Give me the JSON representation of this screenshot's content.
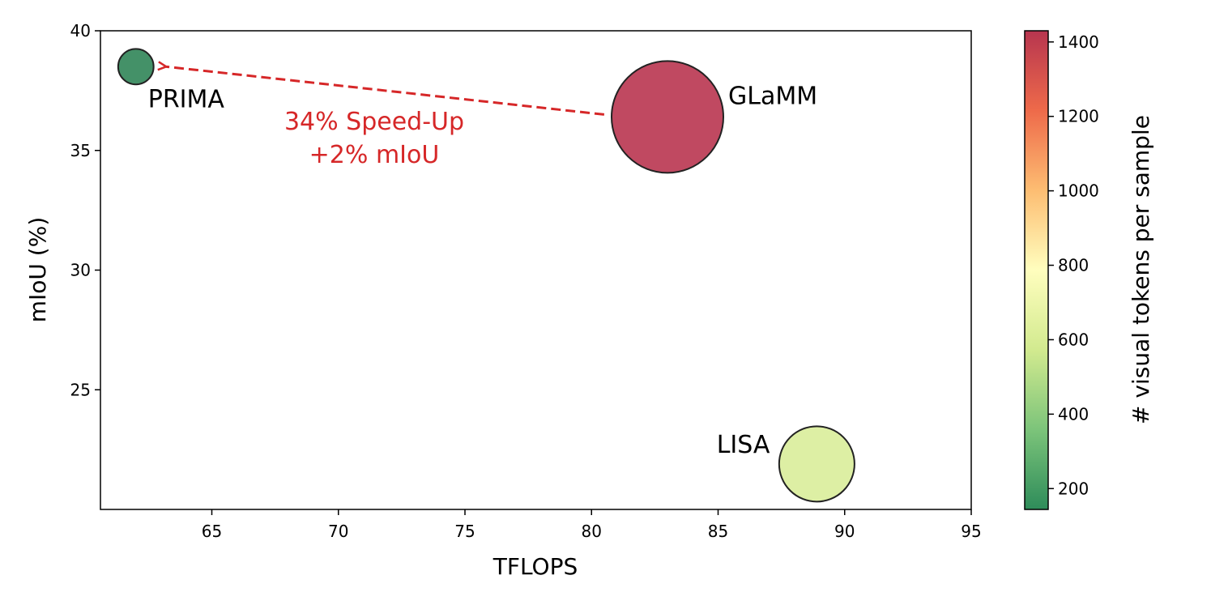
{
  "chart_data": {
    "type": "scatter",
    "xlabel": "TFLOPS",
    "ylabel": "mIoU (%)",
    "xlim": [
      60.6,
      95
    ],
    "ylim": [
      20,
      40
    ],
    "xticks": [
      65,
      70,
      75,
      80,
      85,
      90,
      95
    ],
    "yticks": [
      25,
      30,
      35,
      40
    ],
    "grid": false,
    "points": [
      {
        "label": "PRIMA",
        "x": 62.0,
        "y": 38.5,
        "tokens": 144,
        "color": "#3a8b60"
      },
      {
        "label": "GLaMM",
        "x": 83.0,
        "y": 36.4,
        "tokens": 1430,
        "color": "#bd3f58"
      },
      {
        "label": "LISA",
        "x": 88.9,
        "y": 21.9,
        "tokens": 650,
        "color": "#dbee9f"
      }
    ],
    "annotation": {
      "lines": [
        "34% Speed-Up",
        "+2% mIoU"
      ],
      "color": "#d62728",
      "arrow_from": {
        "x": 80.5,
        "y": 36.5
      },
      "arrow_to": {
        "x": 63.2,
        "y": 38.5
      }
    },
    "colorbar": {
      "label": "# visual tokens per sample",
      "min": 144,
      "max": 1430,
      "ticks": [
        200,
        400,
        600,
        800,
        1000,
        1200,
        1400
      ],
      "colormap": "RdYlGn_r",
      "stops": [
        "#2e8c5a",
        "#7cc47a",
        "#d2ea8f",
        "#fffebe",
        "#fdbd72",
        "#ee6a4a",
        "#b7354f"
      ]
    }
  }
}
